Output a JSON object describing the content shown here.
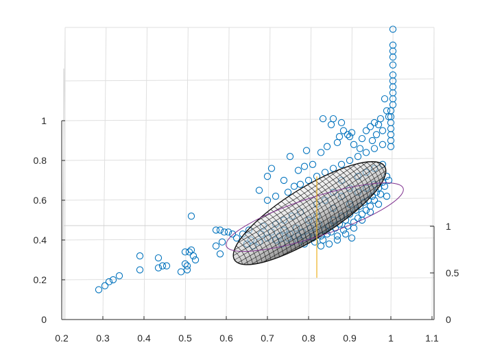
{
  "chart_data": {
    "type": "scatter",
    "title": "",
    "xlabel": "",
    "ylabel": "",
    "zlabel": "",
    "grid": true,
    "view": "3d",
    "xlim": [
      0.2,
      1.1
    ],
    "ylim": [
      0,
      1.4
    ],
    "zlim": [
      0,
      1
    ],
    "x_ticks": [
      "0.2",
      "0.3",
      "0.4",
      "0.5",
      "0.6",
      "0.7",
      "0.8",
      "0.9",
      "1",
      "1.1"
    ],
    "y_ticks": [
      "0",
      "0.2",
      "0.4",
      "0.6",
      "0.8",
      "1"
    ],
    "z_ticks": [
      "0",
      "0.5",
      "1"
    ],
    "colors": {
      "scatter": "#0072bd",
      "ellipsoid_mesh": "#111111",
      "ellipse_outline": "#7e2f8e",
      "axis_line": "#edb120"
    },
    "series": [
      {
        "marker": "circle",
        "points": [
          [
            0.29,
            0.15
          ],
          [
            0.305,
            0.17
          ],
          [
            0.315,
            0.19
          ],
          [
            0.325,
            0.2
          ],
          [
            0.34,
            0.22
          ],
          [
            0.39,
            0.25
          ],
          [
            0.39,
            0.32
          ],
          [
            0.435,
            0.26
          ],
          [
            0.435,
            0.31
          ],
          [
            0.445,
            0.27
          ],
          [
            0.455,
            0.27
          ],
          [
            0.49,
            0.24
          ],
          [
            0.5,
            0.28
          ],
          [
            0.505,
            0.27
          ],
          [
            0.505,
            0.25
          ],
          [
            0.51,
            0.34
          ],
          [
            0.515,
            0.35
          ],
          [
            0.52,
            0.32
          ],
          [
            0.525,
            0.3
          ],
          [
            0.5,
            0.34
          ],
          [
            0.515,
            0.52
          ],
          [
            0.575,
            0.37
          ],
          [
            0.575,
            0.45
          ],
          [
            0.585,
            0.33
          ],
          [
            0.585,
            0.45
          ],
          [
            0.59,
            0.39
          ],
          [
            0.595,
            0.44
          ],
          [
            0.605,
            0.44
          ],
          [
            0.615,
            0.43
          ],
          [
            0.625,
            0.41
          ],
          [
            0.64,
            0.43
          ],
          [
            0.65,
            0.38
          ],
          [
            0.655,
            0.45
          ],
          [
            0.66,
            0.4
          ],
          [
            0.665,
            0.37
          ],
          [
            0.68,
            0.39
          ],
          [
            0.685,
            0.43
          ],
          [
            0.69,
            0.47
          ],
          [
            0.7,
            0.41
          ],
          [
            0.71,
            0.44
          ],
          [
            0.72,
            0.4
          ],
          [
            0.73,
            0.42
          ],
          [
            0.735,
            0.38
          ],
          [
            0.74,
            0.45
          ],
          [
            0.75,
            0.41
          ],
          [
            0.755,
            0.43
          ],
          [
            0.76,
            0.39
          ],
          [
            0.77,
            0.46
          ],
          [
            0.775,
            0.42
          ],
          [
            0.78,
            0.4
          ],
          [
            0.785,
            0.44
          ],
          [
            0.79,
            0.38
          ],
          [
            0.8,
            0.42
          ],
          [
            0.805,
            0.46
          ],
          [
            0.81,
            0.41
          ],
          [
            0.815,
            0.39
          ],
          [
            0.82,
            0.44
          ],
          [
            0.825,
            0.48
          ],
          [
            0.83,
            0.42
          ],
          [
            0.835,
            0.4
          ],
          [
            0.84,
            0.45
          ],
          [
            0.845,
            0.43
          ],
          [
            0.85,
            0.47
          ],
          [
            0.855,
            0.44
          ],
          [
            0.86,
            0.5
          ],
          [
            0.865,
            0.46
          ],
          [
            0.87,
            0.42
          ],
          [
            0.875,
            0.48
          ],
          [
            0.88,
            0.52
          ],
          [
            0.885,
            0.45
          ],
          [
            0.89,
            0.5
          ],
          [
            0.895,
            0.47
          ],
          [
            0.9,
            0.53
          ],
          [
            0.905,
            0.41
          ],
          [
            0.91,
            0.49
          ],
          [
            0.915,
            0.55
          ],
          [
            0.92,
            0.51
          ],
          [
            0.925,
            0.57
          ],
          [
            0.93,
            0.53
          ],
          [
            0.935,
            0.59
          ],
          [
            0.94,
            0.55
          ],
          [
            0.945,
            0.6
          ],
          [
            0.95,
            0.57
          ],
          [
            0.955,
            0.62
          ],
          [
            0.96,
            0.6
          ],
          [
            0.965,
            0.64
          ],
          [
            0.97,
            0.66
          ],
          [
            0.975,
            0.63
          ],
          [
            0.98,
            0.69
          ],
          [
            0.985,
            0.67
          ],
          [
            0.99,
            0.72
          ],
          [
            0.995,
            0.7
          ],
          [
            0.7,
            0.6
          ],
          [
            0.72,
            0.62
          ],
          [
            0.75,
            0.64
          ],
          [
            0.78,
            0.68
          ],
          [
            0.8,
            0.7
          ],
          [
            0.82,
            0.72
          ],
          [
            0.84,
            0.74
          ],
          [
            0.86,
            0.76
          ],
          [
            0.88,
            0.78
          ],
          [
            0.9,
            0.8
          ],
          [
            0.92,
            0.82
          ],
          [
            0.94,
            0.84
          ],
          [
            0.96,
            0.86
          ],
          [
            0.98,
            0.88
          ],
          [
            0.68,
            0.65
          ],
          [
            0.7,
            0.72
          ],
          [
            0.71,
            0.76
          ],
          [
            0.74,
            0.7
          ],
          [
            0.755,
            0.82
          ],
          [
            0.765,
            0.67
          ],
          [
            0.775,
            0.75
          ],
          [
            0.79,
            0.77
          ],
          [
            0.795,
            0.85
          ],
          [
            0.81,
            0.78
          ],
          [
            0.83,
            0.84
          ],
          [
            0.835,
            1.01
          ],
          [
            0.845,
            0.87
          ],
          [
            0.855,
            0.98
          ],
          [
            0.86,
            1.01
          ],
          [
            0.87,
            0.89
          ],
          [
            0.875,
            0.92
          ],
          [
            0.88,
            0.99
          ],
          [
            0.885,
            0.95
          ],
          [
            0.895,
            0.93
          ],
          [
            0.9,
            0.92
          ],
          [
            0.905,
            0.94
          ],
          [
            0.91,
            0.88
          ],
          [
            0.925,
            0.86
          ],
          [
            0.93,
            0.91
          ],
          [
            0.94,
            0.95
          ],
          [
            0.95,
            0.97
          ],
          [
            0.955,
            0.9
          ],
          [
            0.96,
            0.99
          ],
          [
            0.965,
            0.93
          ],
          [
            0.97,
            0.98
          ],
          [
            0.975,
            1.01
          ],
          [
            0.98,
            0.95
          ],
          [
            0.985,
            1.11
          ],
          [
            0.99,
            1.05
          ],
          [
            0.995,
            1.02
          ],
          [
            1.0,
            0.87
          ],
          [
            1.0,
            0.9
          ],
          [
            1.0,
            0.93
          ],
          [
            1.0,
            0.96
          ],
          [
            1.0,
            0.99
          ],
          [
            1.0,
            1.02
          ],
          [
            1.0,
            1.05
          ],
          [
            1.005,
            1.08
          ],
          [
            1.005,
            1.11
          ],
          [
            1.005,
            1.14
          ],
          [
            1.005,
            1.17
          ],
          [
            1.005,
            1.2
          ],
          [
            1.005,
            1.23
          ],
          [
            1.005,
            1.28
          ],
          [
            1.005,
            1.32
          ],
          [
            1.005,
            1.35
          ],
          [
            1.005,
            1.38
          ],
          [
            1.005,
            1.46
          ],
          [
            0.82,
            0.58
          ],
          [
            0.84,
            0.6
          ],
          [
            0.86,
            0.56
          ],
          [
            0.88,
            0.62
          ],
          [
            0.9,
            0.58
          ],
          [
            0.92,
            0.64
          ],
          [
            0.94,
            0.66
          ],
          [
            0.96,
            0.68
          ],
          [
            0.76,
            0.52
          ],
          [
            0.78,
            0.54
          ],
          [
            0.8,
            0.5
          ],
          [
            0.82,
            0.52
          ],
          [
            0.74,
            0.5
          ],
          [
            0.72,
            0.48
          ],
          [
            0.86,
            0.64
          ],
          [
            0.88,
            0.7
          ],
          [
            0.9,
            0.66
          ],
          [
            0.92,
            0.72
          ],
          [
            0.94,
            0.74
          ],
          [
            0.96,
            0.76
          ],
          [
            0.98,
            0.78
          ],
          [
            0.99,
            0.62
          ],
          [
            0.97,
            0.58
          ],
          [
            0.95,
            0.54
          ],
          [
            0.93,
            0.5
          ],
          [
            0.91,
            0.46
          ],
          [
            0.89,
            0.43
          ],
          [
            0.87,
            0.4
          ],
          [
            0.85,
            0.38
          ],
          [
            0.83,
            0.37
          ]
        ]
      }
    ],
    "ellipsoid": {
      "center": [
        0.8,
        0.53
      ],
      "major_start": [
        0.62,
        0.3
      ],
      "major_end": [
        0.985,
        0.77
      ],
      "minor_axis": 0.32,
      "outline_center": [
        0.825,
        0.52
      ],
      "outline_major_start": [
        0.6,
        0.37
      ],
      "outline_major_end": [
        1.03,
        0.66
      ],
      "outline_minor_axis": 0.28
    }
  }
}
